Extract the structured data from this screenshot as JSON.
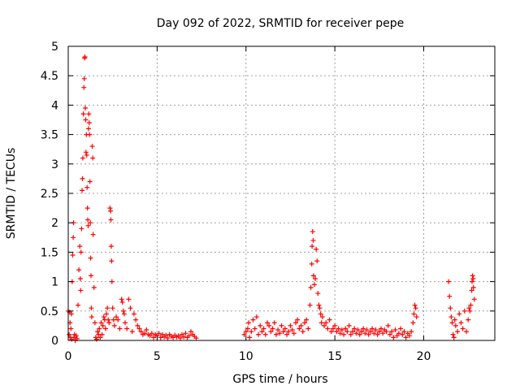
{
  "chart_data": {
    "type": "scatter",
    "title": "Day 092 of 2022, SRMTID for receiver pepe",
    "xlabel": "GPS time / hours",
    "ylabel": "SRMTID / TECUs",
    "xlim": [
      0,
      24
    ],
    "ylim": [
      0,
      5
    ],
    "grid": true,
    "marker": "+",
    "xticks": [
      0,
      5,
      10,
      15,
      20
    ],
    "yticks": [
      0,
      0.5,
      1,
      1.5,
      2,
      2.5,
      3,
      3.5,
      4,
      4.5,
      5
    ],
    "xtick_labels": [
      "0",
      "5",
      "10",
      "15",
      "20"
    ],
    "ytick_labels": [
      "0",
      "0.5",
      "1",
      "1.5",
      "2",
      "2.5",
      "3",
      "3.5",
      "4",
      "4.5",
      "5"
    ],
    "series": [
      {
        "name": "SRMTID",
        "color": "#ff0000",
        "points": [
          [
            0.0,
            0.5
          ],
          [
            0.05,
            0.1
          ],
          [
            0.08,
            0.48
          ],
          [
            0.1,
            0.3
          ],
          [
            0.12,
            0.05
          ],
          [
            0.15,
            0.2
          ],
          [
            0.18,
            0.45
          ],
          [
            0.2,
            0.02
          ],
          [
            0.22,
            1.0
          ],
          [
            0.25,
            1.45
          ],
          [
            0.28,
            1.75
          ],
          [
            0.3,
            2.0
          ],
          [
            0.32,
            0.05
          ],
          [
            0.35,
            0.1
          ],
          [
            0.4,
            0.0
          ],
          [
            0.45,
            0.08
          ],
          [
            0.5,
            0.03
          ],
          [
            0.55,
            0.6
          ],
          [
            0.6,
            1.2
          ],
          [
            0.65,
            1.6
          ],
          [
            0.68,
            1.05
          ],
          [
            0.7,
            0.85
          ],
          [
            0.72,
            1.5
          ],
          [
            0.75,
            1.9
          ],
          [
            0.78,
            2.55
          ],
          [
            0.8,
            2.75
          ],
          [
            0.82,
            3.1
          ],
          [
            0.85,
            3.85
          ],
          [
            0.88,
            4.3
          ],
          [
            0.9,
            4.45
          ],
          [
            0.92,
            4.8
          ],
          [
            0.94,
            4.82
          ],
          [
            0.96,
            3.95
          ],
          [
            0.98,
            3.75
          ],
          [
            1.0,
            3.2
          ],
          [
            1.02,
            3.5
          ],
          [
            1.04,
            3.15
          ],
          [
            1.06,
            2.6
          ],
          [
            1.08,
            2.25
          ],
          [
            1.1,
            2.05
          ],
          [
            1.12,
            1.95
          ],
          [
            1.14,
            3.6
          ],
          [
            1.16,
            3.85
          ],
          [
            1.18,
            3.7
          ],
          [
            1.2,
            3.5
          ],
          [
            1.22,
            2.7
          ],
          [
            1.24,
            2.0
          ],
          [
            1.26,
            1.4
          ],
          [
            1.28,
            1.1
          ],
          [
            1.3,
            0.55
          ],
          [
            1.32,
            0.4
          ],
          [
            1.35,
            3.3
          ],
          [
            1.38,
            3.1
          ],
          [
            1.4,
            1.8
          ],
          [
            1.45,
            0.9
          ],
          [
            1.5,
            0.3
          ],
          [
            1.55,
            0.05
          ],
          [
            1.6,
            0.02
          ],
          [
            1.65,
            0.15
          ],
          [
            1.7,
            0.1
          ],
          [
            1.75,
            0.2
          ],
          [
            1.8,
            0.05
          ],
          [
            1.85,
            0.3
          ],
          [
            1.9,
            0.1
          ],
          [
            1.95,
            0.25
          ],
          [
            2.0,
            0.4
          ],
          [
            2.05,
            0.35
          ],
          [
            2.1,
            0.2
          ],
          [
            2.15,
            0.45
          ],
          [
            2.2,
            0.55
          ],
          [
            2.25,
            0.35
          ],
          [
            2.3,
            0.3
          ],
          [
            2.35,
            2.25
          ],
          [
            2.38,
            2.2
          ],
          [
            2.4,
            2.05
          ],
          [
            2.42,
            1.6
          ],
          [
            2.44,
            1.35
          ],
          [
            2.46,
            1.0
          ],
          [
            2.5,
            0.55
          ],
          [
            2.55,
            0.35
          ],
          [
            2.6,
            0.25
          ],
          [
            2.7,
            0.4
          ],
          [
            2.8,
            0.35
          ],
          [
            2.9,
            0.2
          ],
          [
            3.0,
            0.7
          ],
          [
            3.05,
            0.65
          ],
          [
            3.1,
            0.5
          ],
          [
            3.15,
            0.45
          ],
          [
            3.2,
            0.3
          ],
          [
            3.3,
            0.2
          ],
          [
            3.4,
            0.7
          ],
          [
            3.5,
            0.55
          ],
          [
            3.6,
            0.15
          ],
          [
            3.7,
            0.45
          ],
          [
            3.8,
            0.35
          ],
          [
            3.9,
            0.25
          ],
          [
            4.0,
            0.2
          ],
          [
            4.1,
            0.15
          ],
          [
            4.2,
            0.1
          ],
          [
            4.3,
            0.12
          ],
          [
            4.4,
            0.18
          ],
          [
            4.5,
            0.1
          ],
          [
            4.6,
            0.08
          ],
          [
            4.7,
            0.12
          ],
          [
            4.8,
            0.05
          ],
          [
            4.9,
            0.1
          ],
          [
            5.0,
            0.08
          ],
          [
            5.1,
            0.12
          ],
          [
            5.2,
            0.05
          ],
          [
            5.3,
            0.1
          ],
          [
            5.4,
            0.06
          ],
          [
            5.5,
            0.09
          ],
          [
            5.6,
            0.04
          ],
          [
            5.7,
            0.1
          ],
          [
            5.8,
            0.07
          ],
          [
            5.9,
            0.05
          ],
          [
            6.0,
            0.09
          ],
          [
            6.1,
            0.06
          ],
          [
            6.2,
            0.08
          ],
          [
            6.3,
            0.04
          ],
          [
            6.4,
            0.1
          ],
          [
            6.5,
            0.06
          ],
          [
            6.6,
            0.12
          ],
          [
            6.7,
            0.05
          ],
          [
            6.8,
            0.08
          ],
          [
            6.9,
            0.15
          ],
          [
            7.0,
            0.1
          ],
          [
            7.1,
            0.07
          ],
          [
            7.2,
            0.04
          ],
          [
            9.9,
            0.1
          ],
          [
            10.0,
            0.15
          ],
          [
            10.1,
            0.2
          ],
          [
            10.15,
            0.3
          ],
          [
            10.2,
            0.05
          ],
          [
            10.3,
            0.15
          ],
          [
            10.4,
            0.35
          ],
          [
            10.5,
            0.2
          ],
          [
            10.6,
            0.4
          ],
          [
            10.7,
            0.1
          ],
          [
            10.8,
            0.25
          ],
          [
            10.9,
            0.15
          ],
          [
            11.0,
            0.2
          ],
          [
            11.1,
            0.1
          ],
          [
            11.2,
            0.3
          ],
          [
            11.3,
            0.25
          ],
          [
            11.4,
            0.15
          ],
          [
            11.5,
            0.2
          ],
          [
            11.6,
            0.3
          ],
          [
            11.7,
            0.1
          ],
          [
            11.8,
            0.18
          ],
          [
            11.9,
            0.12
          ],
          [
            12.0,
            0.25
          ],
          [
            12.1,
            0.15
          ],
          [
            12.2,
            0.2
          ],
          [
            12.3,
            0.1
          ],
          [
            12.4,
            0.15
          ],
          [
            12.5,
            0.25
          ],
          [
            12.6,
            0.18
          ],
          [
            12.7,
            0.12
          ],
          [
            12.8,
            0.3
          ],
          [
            12.9,
            0.35
          ],
          [
            13.0,
            0.2
          ],
          [
            13.1,
            0.25
          ],
          [
            13.2,
            0.15
          ],
          [
            13.3,
            0.3
          ],
          [
            13.4,
            0.35
          ],
          [
            13.5,
            0.2
          ],
          [
            13.6,
            0.6
          ],
          [
            13.65,
            0.9
          ],
          [
            13.7,
            1.3
          ],
          [
            13.72,
            1.6
          ],
          [
            13.75,
            1.85
          ],
          [
            13.78,
            1.7
          ],
          [
            13.8,
            1.1
          ],
          [
            13.85,
            0.95
          ],
          [
            13.9,
            1.05
          ],
          [
            13.95,
            1.55
          ],
          [
            14.0,
            1.35
          ],
          [
            14.05,
            0.8
          ],
          [
            14.1,
            0.6
          ],
          [
            14.15,
            0.55
          ],
          [
            14.2,
            0.45
          ],
          [
            14.25,
            0.3
          ],
          [
            14.3,
            0.4
          ],
          [
            14.4,
            0.25
          ],
          [
            14.5,
            0.3
          ],
          [
            14.6,
            0.2
          ],
          [
            14.7,
            0.35
          ],
          [
            14.8,
            0.15
          ],
          [
            14.9,
            0.2
          ],
          [
            15.0,
            0.25
          ],
          [
            15.1,
            0.15
          ],
          [
            15.2,
            0.2
          ],
          [
            15.3,
            0.12
          ],
          [
            15.4,
            0.18
          ],
          [
            15.5,
            0.1
          ],
          [
            15.6,
            0.2
          ],
          [
            15.7,
            0.15
          ],
          [
            15.8,
            0.25
          ],
          [
            15.9,
            0.1
          ],
          [
            16.0,
            0.15
          ],
          [
            16.1,
            0.2
          ],
          [
            16.2,
            0.12
          ],
          [
            16.3,
            0.18
          ],
          [
            16.4,
            0.1
          ],
          [
            16.5,
            0.15
          ],
          [
            16.6,
            0.2
          ],
          [
            16.7,
            0.12
          ],
          [
            16.8,
            0.18
          ],
          [
            16.9,
            0.1
          ],
          [
            17.0,
            0.15
          ],
          [
            17.1,
            0.2
          ],
          [
            17.2,
            0.12
          ],
          [
            17.3,
            0.18
          ],
          [
            17.4,
            0.1
          ],
          [
            17.5,
            0.15
          ],
          [
            17.6,
            0.2
          ],
          [
            17.7,
            0.12
          ],
          [
            17.8,
            0.18
          ],
          [
            17.9,
            0.15
          ],
          [
            18.0,
            0.25
          ],
          [
            18.1,
            0.1
          ],
          [
            18.2,
            0.15
          ],
          [
            18.3,
            0.05
          ],
          [
            18.4,
            0.18
          ],
          [
            18.5,
            0.08
          ],
          [
            18.6,
            0.12
          ],
          [
            18.7,
            0.2
          ],
          [
            18.8,
            0.1
          ],
          [
            18.9,
            0.15
          ],
          [
            19.0,
            0.05
          ],
          [
            19.1,
            0.12
          ],
          [
            19.2,
            0.08
          ],
          [
            19.3,
            0.15
          ],
          [
            19.4,
            0.3
          ],
          [
            19.45,
            0.45
          ],
          [
            19.5,
            0.6
          ],
          [
            19.55,
            0.55
          ],
          [
            19.6,
            0.4
          ],
          [
            21.4,
            1.0
          ],
          [
            21.45,
            0.75
          ],
          [
            21.5,
            0.55
          ],
          [
            21.55,
            0.4
          ],
          [
            21.6,
            0.3
          ],
          [
            21.65,
            0.1
          ],
          [
            21.7,
            0.05
          ],
          [
            21.75,
            0.35
          ],
          [
            21.8,
            0.25
          ],
          [
            21.9,
            0.15
          ],
          [
            22.0,
            0.45
          ],
          [
            22.1,
            0.3
          ],
          [
            22.2,
            0.2
          ],
          [
            22.3,
            0.5
          ],
          [
            22.4,
            0.15
          ],
          [
            22.5,
            0.35
          ],
          [
            22.55,
            0.55
          ],
          [
            22.6,
            0.5
          ],
          [
            22.65,
            0.6
          ],
          [
            22.7,
            0.85
          ],
          [
            22.72,
            1.0
          ],
          [
            22.75,
            1.1
          ],
          [
            22.78,
            1.05
          ],
          [
            22.8,
            0.9
          ],
          [
            22.85,
            0.7
          ]
        ]
      }
    ]
  }
}
